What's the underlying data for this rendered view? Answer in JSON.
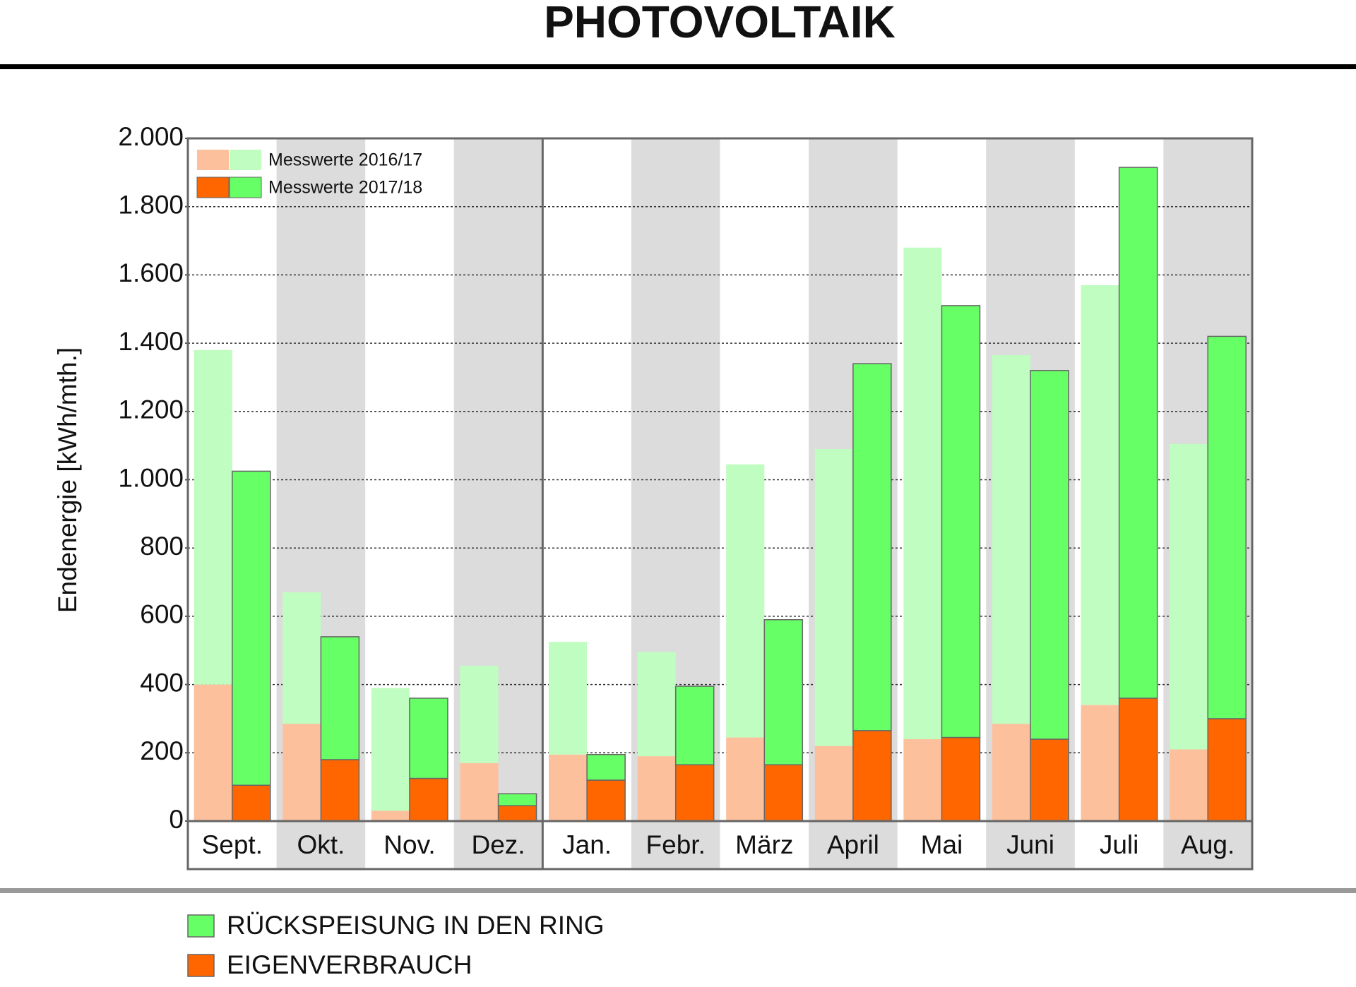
{
  "chart_data": {
    "type": "grouped_stacked_bar",
    "title": "PHOTOVOLTAIK",
    "y_label": "Endenergie [kWh/mth.]",
    "categories": [
      "Sept.",
      "Okt.",
      "Nov.",
      "Dez.",
      "Jan.",
      "Febr.",
      "März",
      "April",
      "Mai",
      "Juni",
      "Juli",
      "Aug."
    ],
    "stack_names": [
      "EIGENVERBRAUCH",
      "RÜCKSPEISUNG IN DEN RING"
    ],
    "stack_colors": [
      "#ff6600",
      "#66ff66"
    ],
    "series": [
      {
        "name": "Messwerte 2016/17",
        "colors": [
          "#fdc09c",
          "#c0fdc0"
        ],
        "segments": [
          [
            400,
            285,
            30,
            170,
            195,
            190,
            245,
            220,
            240,
            285,
            340,
            210
          ],
          [
            980,
            385,
            360,
            285,
            330,
            305,
            800,
            870,
            1440,
            1080,
            1230,
            895
          ]
        ]
      },
      {
        "name": "Messwerte 2017/18",
        "colors": [
          "#ff6600",
          "#66ff66"
        ],
        "segments": [
          [
            105,
            180,
            125,
            45,
            120,
            165,
            165,
            265,
            245,
            240,
            360,
            300
          ],
          [
            920,
            360,
            235,
            35,
            75,
            230,
            425,
            1075,
            1265,
            1080,
            1555,
            1120
          ]
        ]
      }
    ],
    "ylim": [
      0,
      2000
    ],
    "yticks": [
      0,
      200,
      400,
      600,
      800,
      {
        "value": 1000,
        "label": "1.000"
      },
      {
        "value": 1200,
        "label": "1.200"
      },
      {
        "value": 1400,
        "label": "1.400"
      },
      {
        "value": 1600,
        "label": "1.600"
      },
      {
        "value": 1800,
        "label": "1.800"
      },
      {
        "value": 2000,
        "label": "2.000"
      }
    ],
    "grid": true
  }
}
